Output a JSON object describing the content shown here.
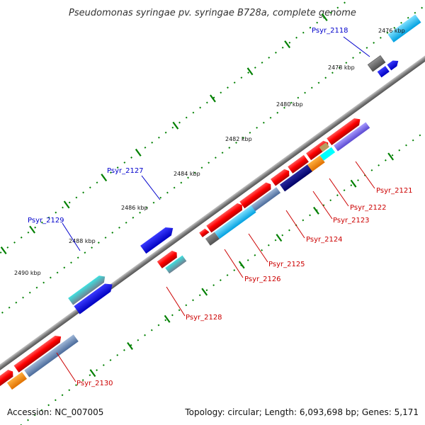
{
  "title": "Pseudomonas syringae pv. syringae B728a, complete genome",
  "footer": {
    "accession": "Accession: NC_007005",
    "summary": "Topology: circular; Length: 6,093,698 bp; Genes: 5,171"
  },
  "kbp_labels": [
    "2476 kbp",
    "2478 kbp",
    "2480 kbp",
    "2482 kbp",
    "2484 kbp",
    "2486 kbp",
    "2488 kbp",
    "2490 kbp"
  ],
  "genes_top": [
    "Psyr_2118",
    "Psyr_2127",
    "Psyr_2129"
  ],
  "genes_bottom": [
    "Psyr_2121",
    "Psyr_2122",
    "Psyr_2123",
    "Psyr_2124",
    "Psyr_2125",
    "Psyr_2126",
    "Psyr_2128",
    "Psyr_2130"
  ],
  "colors": {
    "backbone": "#808080",
    "tick_green": "#008000",
    "label_blue": "#0000cc",
    "label_red": "#cc0000",
    "gene_red": "#ff0000",
    "gene_blue": "#0000ee",
    "gene_navy": "#000080",
    "gene_cyan": "#00bfff",
    "gene_orange": "#ff8c00",
    "gene_purple": "#7b68ee",
    "gene_grey": "#696969"
  }
}
